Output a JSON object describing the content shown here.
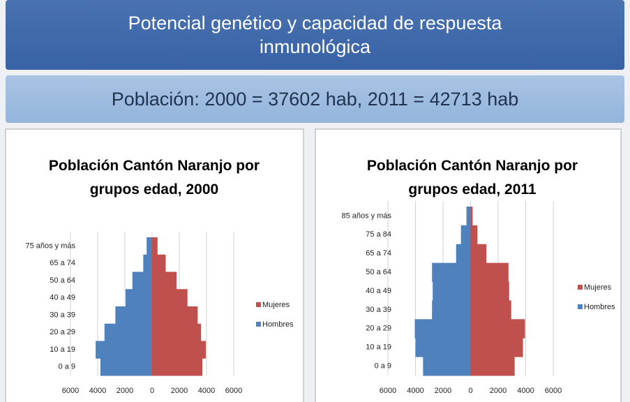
{
  "header": {
    "title": "Potencial genético y capacidad de respuesta inmunológica",
    "subtitle": "Población: 2000 = 37602 hab, 2011 = 42713 hab"
  },
  "chart_data": [
    {
      "type": "bar",
      "orientation": "horizontal",
      "title": "Población Cantón Naranjo por grupos edad, 2000",
      "categories": [
        "0 a 9",
        "10 a 19",
        "20 a 29",
        "30 a 39",
        "40 a 49",
        "50 a 64",
        "65 a 74",
        "75 años y más"
      ],
      "series": [
        {
          "name": "Mujeres",
          "color": "#c0504d",
          "values": [
            3700,
            3950,
            3600,
            3350,
            2600,
            1800,
            1000,
            400
          ]
        },
        {
          "name": "Hombres",
          "color": "#4f81bd",
          "values": [
            -3800,
            -4150,
            -3500,
            -2700,
            -1950,
            -1450,
            -650,
            -400
          ]
        }
      ],
      "xlim": [
        -6000,
        6000
      ],
      "xticks": [
        {
          "value": -6000,
          "label": "6000"
        },
        {
          "value": -4000,
          "label": "4000"
        },
        {
          "value": -2000,
          "label": "2000"
        },
        0,
        2000,
        4000,
        6000
      ],
      "grid": true,
      "legend": "right"
    },
    {
      "type": "bar",
      "orientation": "horizontal",
      "title": "Población Cantón Naranjo por grupos edad, 2011",
      "categories": [
        "0 a 9",
        "10 a 19",
        "20 a 29",
        "30 a 39",
        "40 a 49",
        "50 a 64",
        "65 a 74",
        "75 a 84",
        "85 años y más"
      ],
      "series": [
        {
          "name": "Mujeres",
          "color": "#c0504d",
          "values": [
            3200,
            3800,
            3950,
            2950,
            2800,
            2750,
            1150,
            500,
            150
          ]
        },
        {
          "name": "Hombres",
          "color": "#4f81bd",
          "values": [
            -3450,
            -4000,
            -4050,
            -2800,
            -2750,
            -2800,
            -1050,
            -700,
            -300
          ]
        }
      ],
      "xlim": [
        -6000,
        6000
      ],
      "xticks": [
        {
          "value": -6000,
          "label": "6000"
        },
        {
          "value": -4000,
          "label": "4000"
        },
        {
          "value": -2000,
          "label": "2000"
        },
        0,
        2000,
        4000,
        6000
      ],
      "grid": true,
      "legend": "right"
    }
  ]
}
